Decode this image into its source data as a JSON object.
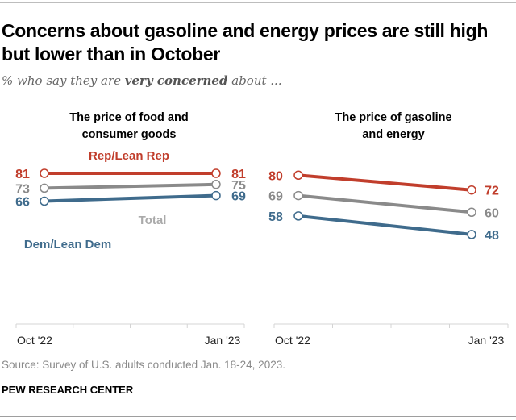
{
  "title": "Concerns about gasoline and energy prices are still high but lower than in October",
  "subtitle_prefix": "% who say they are",
  "subtitle_emphasis": "very concerned",
  "subtitle_suffix": "about ...",
  "source": "Source: Survey of U.S. adults conducted Jan. 18-24, 2023.",
  "organization": "PEW RESEARCH CENTER",
  "colors": {
    "rep": "#c13e2c",
    "total": "#8a8a8a",
    "dem": "#3f6b8c",
    "axis": "#d4d4d4"
  },
  "chart_data": [
    {
      "type": "line",
      "title": "The price of food and consumer goods",
      "x": [
        "Oct '22",
        "Jan '23"
      ],
      "ylim": [
        40,
        85
      ],
      "grid": false,
      "series": [
        {
          "name": "Rep/Lean Rep",
          "key": "rep",
          "values": [
            81,
            81
          ]
        },
        {
          "name": "Total",
          "key": "total",
          "values": [
            73,
            75
          ]
        },
        {
          "name": "Dem/Lean Dem",
          "key": "dem",
          "values": [
            66,
            69
          ]
        }
      ]
    },
    {
      "type": "line",
      "title": "The price of gasoline and energy",
      "x": [
        "Oct '22",
        "Jan '23"
      ],
      "ylim": [
        40,
        85
      ],
      "grid": false,
      "series": [
        {
          "name": "Rep/Lean Rep",
          "key": "rep",
          "values": [
            80,
            72
          ]
        },
        {
          "name": "Total",
          "key": "total",
          "values": [
            69,
            60
          ]
        },
        {
          "name": "Dem/Lean Dem",
          "key": "dem",
          "values": [
            58,
            48
          ]
        }
      ]
    }
  ],
  "panel_titles": [
    [
      "The price of food and",
      "consumer goods"
    ],
    [
      "The price of gasoline",
      "and energy"
    ]
  ],
  "series_labels": {
    "rep": "Rep/Lean Rep",
    "total": "Total",
    "dem": "Dem/Lean Dem"
  }
}
